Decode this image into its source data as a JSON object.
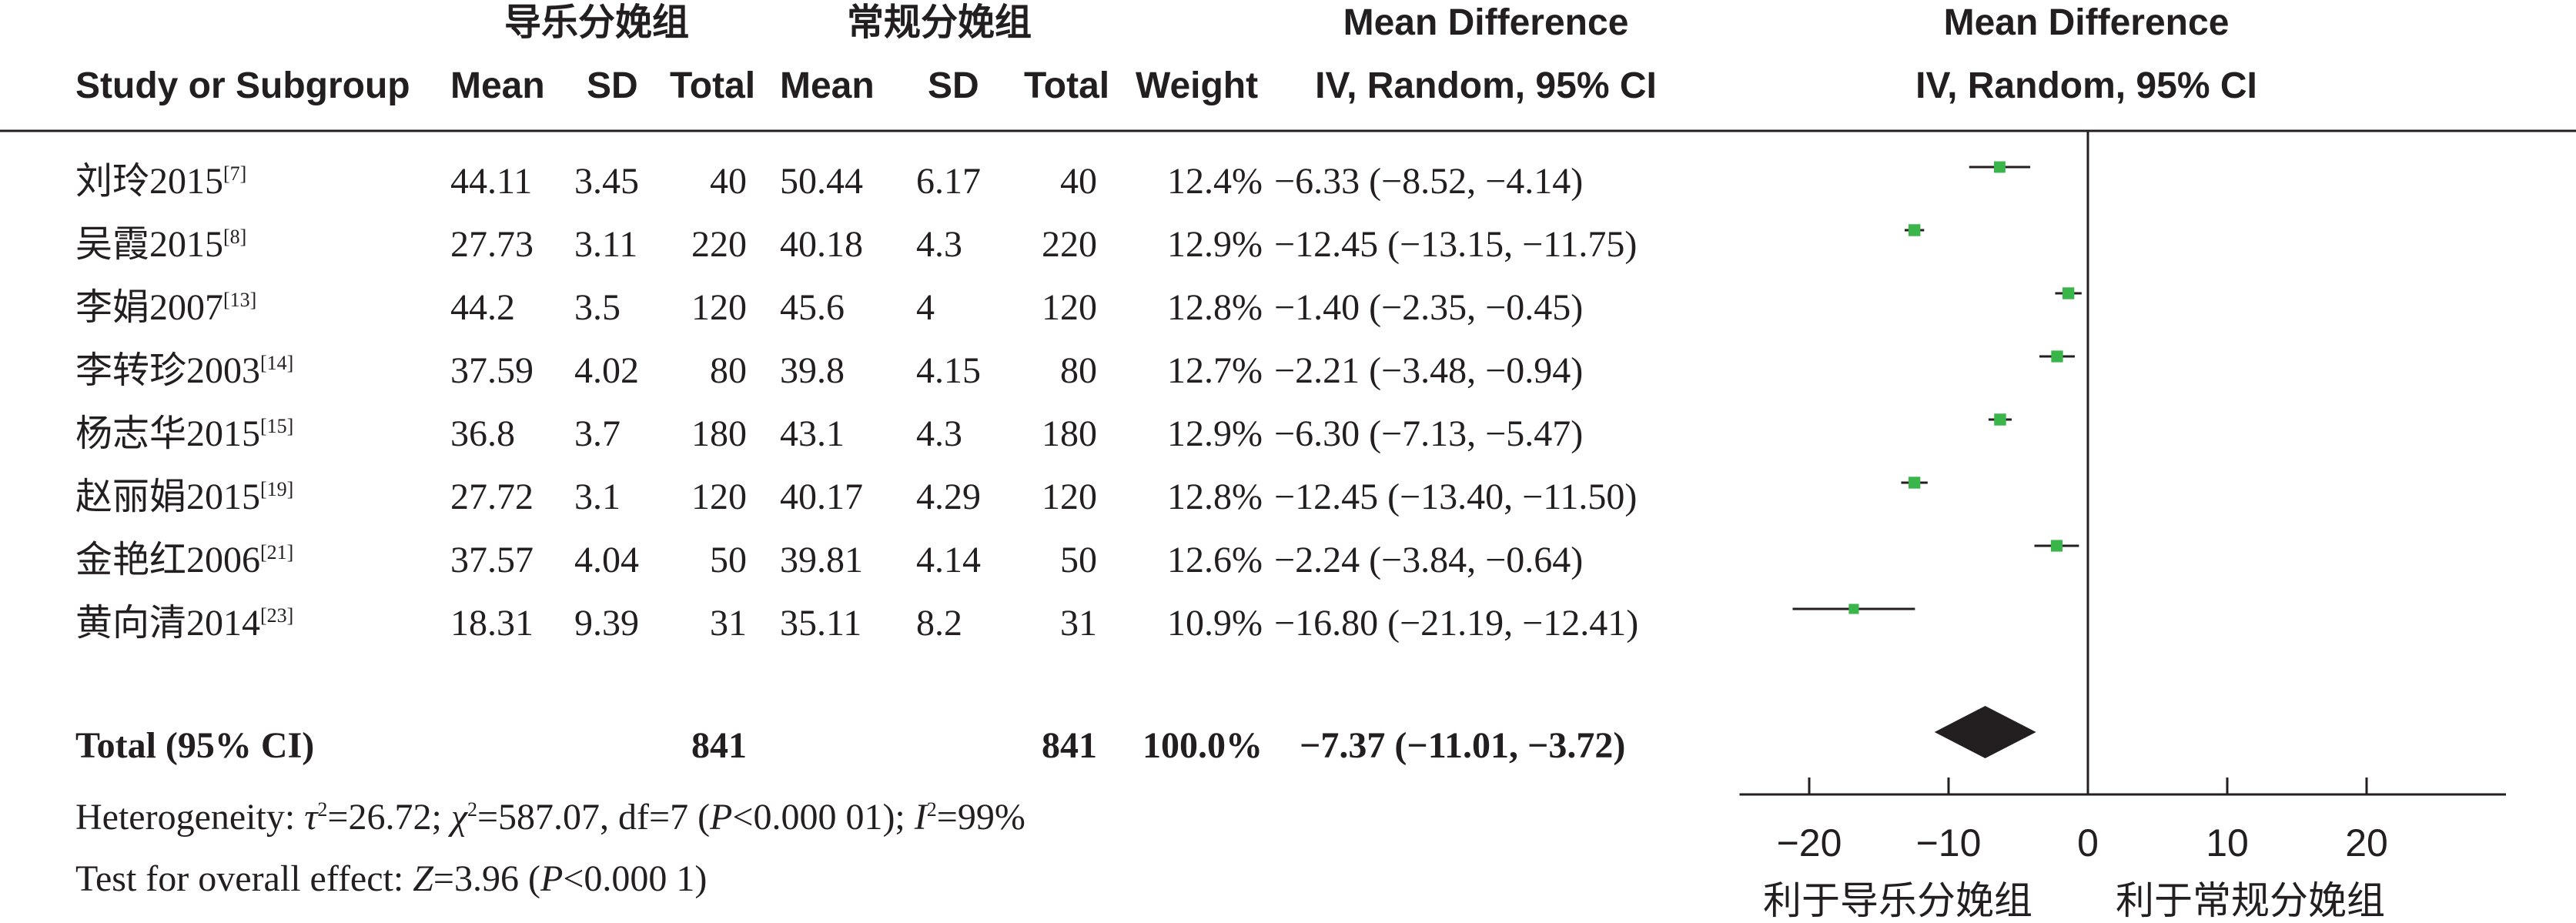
{
  "header": {
    "group1": "导乐分娩组",
    "group2": "常规分娩组",
    "study_col": "Study or Subgroup",
    "mean": "Mean",
    "sd": "SD",
    "total": "Total",
    "weight": "Weight",
    "md_title": "Mean Difference",
    "md_method": "IV, Random, 95% CI",
    "plot_title": "Mean Difference",
    "plot_method": "IV, Random, 95% CI"
  },
  "studies": [
    {
      "name": "刘玲2015",
      "ref": "[7]",
      "m1": "44.11",
      "sd1": "3.45",
      "n1": "40",
      "m2": "50.44",
      "sd2": "6.17",
      "n2": "40",
      "weight": "12.4%",
      "ci": "−6.33 (−8.52, −4.14)"
    },
    {
      "name": "吴霞2015",
      "ref": "[8]",
      "m1": "27.73",
      "sd1": "3.11",
      "n1": "220",
      "m2": "40.18",
      "sd2": "4.3",
      "n2": "220",
      "weight": "12.9%",
      "ci": "−12.45 (−13.15, −11.75)"
    },
    {
      "name": "李娟2007",
      "ref": "[13]",
      "m1": "44.2",
      "sd1": "3.5",
      "n1": "120",
      "m2": "45.6",
      "sd2": "4",
      "n2": "120",
      "weight": "12.8%",
      "ci": "−1.40 (−2.35, −0.45)"
    },
    {
      "name": "李转珍2003",
      "ref": "[14]",
      "m1": "37.59",
      "sd1": "4.02",
      "n1": "80",
      "m2": "39.8",
      "sd2": "4.15",
      "n2": "80",
      "weight": "12.7%",
      "ci": "−2.21 (−3.48, −0.94)"
    },
    {
      "name": "杨志华2015",
      "ref": "[15]",
      "m1": "36.8",
      "sd1": "3.7",
      "n1": "180",
      "m2": "43.1",
      "sd2": "4.3",
      "n2": "180",
      "weight": "12.9%",
      "ci": "−6.30 (−7.13, −5.47)"
    },
    {
      "name": "赵丽娟2015",
      "ref": "[19]",
      "m1": "27.72",
      "sd1": "3.1",
      "n1": "120",
      "m2": "40.17",
      "sd2": "4.29",
      "n2": "120",
      "weight": "12.8%",
      "ci": "−12.45 (−13.40, −11.50)"
    },
    {
      "name": "金艳红2006",
      "ref": "[21]",
      "m1": "37.57",
      "sd1": "4.04",
      "n1": "50",
      "m2": "39.81",
      "sd2": "4.14",
      "n2": "50",
      "weight": "12.6%",
      "ci": "−2.24 (−3.84, −0.64)"
    },
    {
      "name": "黄向清2014",
      "ref": "[23]",
      "m1": "18.31",
      "sd1": "9.39",
      "n1": "31",
      "m2": "35.11",
      "sd2": "8.2",
      "n2": "31",
      "weight": "10.9%",
      "ci": "−16.80 (−21.19, −12.41)"
    }
  ],
  "total": {
    "label": "Total (95% CI)",
    "n1": "841",
    "n2": "841",
    "weight": "100.0%",
    "ci": "−7.37 (−11.01, −3.72)"
  },
  "heterogeneity": {
    "prefix": "Heterogeneity: ",
    "tau_sym": "τ",
    "tau_val": "=26.72; ",
    "chi_sym": "χ",
    "chi_val": "=587.07, df=7 (",
    "p_sym": "P",
    "p_val": "<0.000 01); ",
    "i_sym": "I",
    "i_val": "=99%"
  },
  "overall": {
    "prefix": "Test for overall effect: ",
    "z_sym": "Z",
    "z_val": "=3.96 (",
    "p_sym": "P",
    "p_val": "<0.000 1)"
  },
  "axis": {
    "ticks": [
      "−20",
      "−10",
      "0",
      "10",
      "20"
    ],
    "favors_left": "利于导乐分娩组",
    "favors_right": "利于常规分娩组"
  },
  "colors": {
    "marker": "#3ab54a",
    "diamond": "#231f20",
    "text": "#231f20"
  },
  "chart_data": {
    "type": "forest",
    "xlim": [
      -25,
      30
    ],
    "x_ticks": [
      -20,
      -10,
      0,
      10,
      20
    ],
    "reference_line": 0,
    "studies": [
      {
        "name": "刘玲2015",
        "md": -6.33,
        "lo": -8.52,
        "hi": -4.14,
        "weight": 12.4
      },
      {
        "name": "吴霞2015",
        "md": -12.45,
        "lo": -13.15,
        "hi": -11.75,
        "weight": 12.9
      },
      {
        "name": "李娟2007",
        "md": -1.4,
        "lo": -2.35,
        "hi": -0.45,
        "weight": 12.8
      },
      {
        "name": "李转珍2003",
        "md": -2.21,
        "lo": -3.48,
        "hi": -0.94,
        "weight": 12.7
      },
      {
        "name": "杨志华2015",
        "md": -6.3,
        "lo": -7.13,
        "hi": -5.47,
        "weight": 12.9
      },
      {
        "name": "赵丽娟2015",
        "md": -12.45,
        "lo": -13.4,
        "hi": -11.5,
        "weight": 12.8
      },
      {
        "name": "金艳红2006",
        "md": -2.24,
        "lo": -3.84,
        "hi": -0.64,
        "weight": 12.6
      },
      {
        "name": "黄向清2014",
        "md": -16.8,
        "lo": -21.19,
        "hi": -12.41,
        "weight": 10.9
      }
    ],
    "pooled": {
      "md": -7.37,
      "lo": -11.01,
      "hi": -3.72
    }
  }
}
